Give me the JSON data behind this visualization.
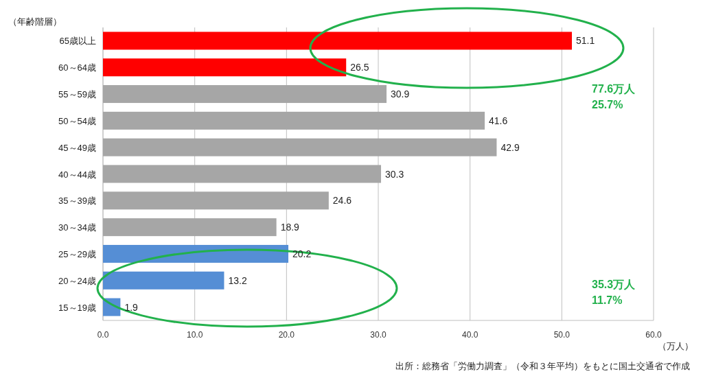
{
  "chart_data": {
    "type": "bar",
    "orientation": "horizontal",
    "ylabel": "（年齢階層）",
    "xlabel": "（万人）",
    "categories": [
      "65歳以上",
      "60～64歳",
      "55～59歳",
      "50～54歳",
      "45～49歳",
      "40～44歳",
      "35～39歳",
      "30～34歳",
      "25～29歳",
      "20～24歳",
      "15～19歳"
    ],
    "values": [
      51.1,
      26.5,
      30.9,
      41.6,
      42.9,
      30.3,
      24.6,
      18.9,
      20.2,
      13.2,
      1.9
    ],
    "colors": [
      "#ff0000",
      "#ff0000",
      "#a6a6a6",
      "#a6a6a6",
      "#a6a6a6",
      "#a6a6a6",
      "#a6a6a6",
      "#a6a6a6",
      "#558ed5",
      "#558ed5",
      "#558ed5"
    ],
    "xlim": [
      0,
      60
    ],
    "xticks": [
      {
        "value": 0,
        "label": "0.0"
      },
      {
        "value": 10,
        "label": "10.0"
      },
      {
        "value": 20,
        "label": "20.0"
      },
      {
        "value": 30,
        "label": "30.0"
      },
      {
        "value": 40,
        "label": "40.0"
      },
      {
        "value": 50,
        "label": "50.0"
      },
      {
        "value": 60,
        "label": "60.0"
      }
    ],
    "grid": "x",
    "data_labels": true,
    "annotations": [
      "77.6万人",
      "25.7%",
      "35.3万人",
      "11.7%",
      "出所：総務省「労働力調査」（令和３年平均）をもとに国土交通省で作成"
    ]
  }
}
